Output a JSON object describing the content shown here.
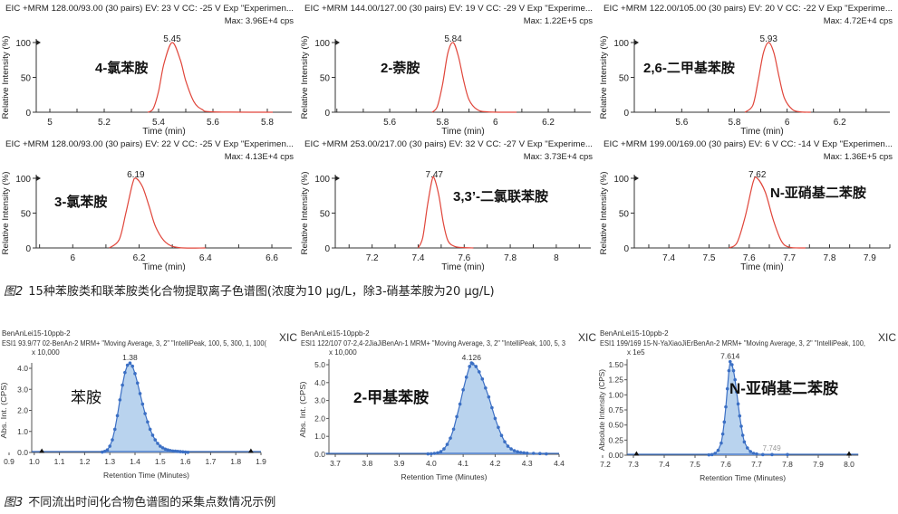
{
  "colors": {
    "eic_line": "#e0453a",
    "xic_line": "#3b6fc4",
    "xic_fill": "#b9d3ee",
    "axis": "#333333"
  },
  "figure2": {
    "caption_label": "图2",
    "caption_text": "15种苯胺类和联苯胺类化合物提取离子色谱图(浓度为10 μg/L，除3-硝基苯胺为20 μg/L)"
  },
  "figure3": {
    "caption_label": "图3",
    "caption_text": "不同流出时间化合物色谱图的采集点数情况示例"
  },
  "chart_data": [
    {
      "type": "line",
      "title": "EIC +MRM 128.00/93.00 (30 pairs) EV: 23 V CC: -25 V Exp \"Experimen...",
      "max": "Max: 3.96E+4 cps",
      "compound": "4-氯苯胺",
      "xlabel": "Time (min)",
      "ylabel": "Relative Intensity (%)",
      "xlim": [
        4.95,
        5.89
      ],
      "ylim": [
        0,
        100
      ],
      "xticks": [
        5,
        5.2,
        5.4,
        5.6,
        5.8
      ],
      "xtick_labels": [
        "5",
        "5.2",
        "5.4",
        "5.6",
        "5.8"
      ],
      "yticks": [
        0,
        50,
        100
      ],
      "ytick_labels": [
        "0",
        "50",
        "100"
      ],
      "peak_label": "5.45",
      "peak_rt": 5.45,
      "x": [
        5.36,
        5.38,
        5.4,
        5.42,
        5.45,
        5.48,
        5.5,
        5.53,
        5.56,
        5.6,
        5.82
      ],
      "y": [
        0,
        5,
        30,
        70,
        100,
        75,
        45,
        15,
        4,
        0.5,
        0
      ]
    },
    {
      "type": "line",
      "title": "EIC +MRM 144.00/127.00 (30 pairs) EV: 19 V CC: -29 V Exp \"Experime...",
      "max": "Max: 1.22E+5 cps",
      "compound": "2-萘胺",
      "xlabel": "Time (min)",
      "ylabel": "Relative Intensity (%)",
      "xlim": [
        5.394,
        6.361
      ],
      "ylim": [
        0,
        100
      ],
      "xticks": [
        5.6,
        5.8,
        6,
        6.2
      ],
      "xtick_labels": [
        "5.6",
        "5.8",
        "6",
        "6.2"
      ],
      "yticks": [
        0,
        50,
        100
      ],
      "ytick_labels": [
        "0",
        "50",
        "100"
      ],
      "peak_label": "5.84",
      "peak_rt": 5.84,
      "x": [
        5.76,
        5.78,
        5.8,
        5.82,
        5.84,
        5.86,
        5.88,
        5.9,
        5.93,
        5.97,
        6.08
      ],
      "y": [
        0,
        8,
        40,
        85,
        100,
        80,
        45,
        18,
        4,
        0.5,
        0
      ]
    },
    {
      "type": "line",
      "title": "EIC +MRM 122.00/105.00 (30 pairs) EV: 20 V CC: -22 V Exp \"Experime...",
      "max": "Max: 4.72E+4 cps",
      "compound": "2,6-二甲基苯胺",
      "xlabel": "Time (min)",
      "ylabel": "Relative Intensity (%)",
      "xlim": [
        5.42,
        6.39
      ],
      "ylim": [
        0,
        100
      ],
      "xticks": [
        5.6,
        5.8,
        6,
        6.2
      ],
      "xtick_labels": [
        "5.6",
        "5.8",
        "6",
        "6.2"
      ],
      "yticks": [
        0,
        50,
        100
      ],
      "ytick_labels": [
        "0",
        "50",
        "100"
      ],
      "peak_label": "5.93",
      "peak_rt": 5.93,
      "x": [
        5.84,
        5.87,
        5.89,
        5.91,
        5.93,
        5.95,
        5.97,
        5.99,
        6.02,
        6.05,
        6.09
      ],
      "y": [
        0,
        10,
        45,
        85,
        100,
        85,
        50,
        20,
        4,
        0.5,
        0
      ]
    },
    {
      "type": "line",
      "title": "EIC +MRM 128.00/93.00 (30 pairs) EV: 22 V CC: -25 V Exp \"Experimen...",
      "max": "Max: 4.13E+4 cps",
      "compound": "3-氯苯胺",
      "xlabel": "Time (min)",
      "ylabel": "Relative Intensity (%)",
      "xlim": [
        5.89,
        6.66
      ],
      "ylim": [
        0,
        100
      ],
      "xticks": [
        6,
        6.2,
        6.4,
        6.6
      ],
      "xtick_labels": [
        "6",
        "6.2",
        "6.4",
        "6.6"
      ],
      "yticks": [
        0,
        50,
        100
      ],
      "ytick_labels": [
        "0",
        "50",
        "100"
      ],
      "peak_label": "6.19",
      "peak_rt": 6.19,
      "x": [
        6.11,
        6.14,
        6.16,
        6.18,
        6.19,
        6.21,
        6.23,
        6.25,
        6.28,
        6.32,
        6.4
      ],
      "y": [
        0,
        12,
        50,
        92,
        100,
        88,
        60,
        30,
        8,
        0.5,
        0
      ]
    },
    {
      "type": "line",
      "title": "EIC +MRM 253.00/217.00 (30 pairs) EV: 32 V CC: -27 V Exp \"Experime...",
      "max": "Max: 3.73E+4 cps",
      "compound": "3,3’-二氯联苯胺",
      "xlabel": "Time (min)",
      "ylabel": "Relative Intensity (%)",
      "xlim": [
        7.04,
        8.15
      ],
      "ylim": [
        0,
        100
      ],
      "xticks": [
        7.2,
        7.4,
        7.6,
        7.8,
        8
      ],
      "xtick_labels": [
        "7.2",
        "7.4",
        "7.6",
        "7.8",
        "8"
      ],
      "yticks": [
        0,
        50,
        100
      ],
      "ytick_labels": [
        "0",
        "50",
        "100"
      ],
      "peak_label": "7.47",
      "peak_rt": 7.47,
      "x": [
        7.4,
        7.42,
        7.44,
        7.46,
        7.47,
        7.49,
        7.51,
        7.53,
        7.56,
        7.6,
        7.64
      ],
      "y": [
        0,
        15,
        60,
        97,
        100,
        75,
        35,
        10,
        2,
        0.5,
        0
      ]
    },
    {
      "type": "line",
      "title": "EIC +MRM 199.00/169.00 (30 pairs) EV: 6 V CC: -14 V Exp \"Experimen...",
      "max": "Max: 1.36E+5 cps",
      "compound": "N-亚硝基二苯胺",
      "xlabel": "Time (min)",
      "ylabel": "Relative Intensity (%)",
      "xlim": [
        7.314,
        7.95
      ],
      "ylim": [
        0,
        100
      ],
      "xticks": [
        7.4,
        7.5,
        7.6,
        7.7,
        7.8,
        7.9
      ],
      "xtick_labels": [
        "7.4",
        "7.5",
        "7.6",
        "7.7",
        "7.8",
        "7.9"
      ],
      "yticks": [
        0,
        50,
        100
      ],
      "ytick_labels": [
        "0",
        "50",
        "100"
      ],
      "peak_label": "7.62",
      "peak_rt": 7.62,
      "x": [
        7.55,
        7.57,
        7.59,
        7.61,
        7.62,
        7.64,
        7.66,
        7.68,
        7.7,
        7.74
      ],
      "y": [
        0,
        8,
        45,
        95,
        100,
        80,
        40,
        10,
        1,
        0
      ]
    },
    {
      "type": "scatter",
      "sample": "BenAnLei15-10ppb-2",
      "title": "ESI1 93.9/77 02-BenAn-2 MRM+ \"Moving Average, 3, 2\" \"IntelliPeak, 100, 5, 300, 1, 100(",
      "tag": "XIC",
      "multiplier": "x 10,000",
      "compound": "苯胺",
      "xlabel": "Retention Time (Minutes)",
      "ylabel": "Abs. Int. (CPS)",
      "xlim": [
        0.9,
        1.9
      ],
      "ylim": [
        0,
        4.3
      ],
      "xticks": [
        0.9,
        1.0,
        1.1,
        1.2,
        1.3,
        1.4,
        1.5,
        1.6,
        1.7,
        1.8,
        1.9
      ],
      "xtick_labels": [
        "0.9",
        "1.0",
        "1.1",
        "1.2",
        "1.3",
        "1.4",
        "1.5",
        "1.6",
        "1.7",
        "1.8",
        "1.9"
      ],
      "yticks": [
        0,
        1,
        2,
        3,
        4
      ],
      "ytick_labels": [
        "0.0",
        "1.0",
        "2.0",
        "3.0",
        "4.0"
      ],
      "peak_label": "1.38",
      "peak_rt": 1.38,
      "peak_value": 4.25,
      "markers": [
        1.03,
        1.86
      ],
      "baseline_range": [
        0.99,
        1.9
      ],
      "x": [
        1.27,
        1.28,
        1.29,
        1.3,
        1.31,
        1.32,
        1.33,
        1.34,
        1.35,
        1.36,
        1.37,
        1.38,
        1.39,
        1.4,
        1.41,
        1.42,
        1.43,
        1.44,
        1.45,
        1.46,
        1.47,
        1.48,
        1.49,
        1.5,
        1.51,
        1.52,
        1.53,
        1.54,
        1.55,
        1.56,
        1.57,
        1.58,
        1.59,
        1.6,
        1.61
      ],
      "y": [
        0.02,
        0.05,
        0.12,
        0.3,
        0.6,
        1.1,
        1.75,
        2.5,
        3.2,
        3.8,
        4.15,
        4.25,
        4.1,
        3.75,
        3.3,
        2.8,
        2.3,
        1.85,
        1.45,
        1.1,
        0.82,
        0.6,
        0.43,
        0.3,
        0.22,
        0.16,
        0.12,
        0.09,
        0.07,
        0.06,
        0.05,
        0.04,
        0.03,
        0.02,
        0.01
      ]
    },
    {
      "type": "scatter",
      "sample": "BenAnLei15-10ppb-2",
      "title": "ESI1 122/107 07-2,4-2JiaJiBenAn-1 MRM+ \"Moving Average, 3, 2\" \"IntelliPeak, 100, 5, 3",
      "tag": "XIC",
      "multiplier": "x 10,000",
      "compound": "2-甲基苯胺",
      "xlabel": "Retention Time (Minutes)",
      "ylabel": "Abs. Int. (CPS)",
      "xlim": [
        3.67,
        4.4
      ],
      "ylim": [
        0,
        5.1
      ],
      "xticks": [
        3.7,
        3.8,
        3.9,
        4.0,
        4.1,
        4.2,
        4.3,
        4.4
      ],
      "xtick_labels": [
        "3.7",
        "3.8",
        "3.9",
        "4.0",
        "4.1",
        "4.2",
        "4.3",
        "4.4"
      ],
      "yticks": [
        0,
        1,
        2,
        3,
        4,
        5
      ],
      "ytick_labels": [
        "0.0",
        "1.0",
        "2.0",
        "3.0",
        "4.0",
        "5.0"
      ],
      "peak_label": "4.126",
      "peak_rt": 4.126,
      "peak_value": 5.1,
      "markers": [],
      "baseline_range": [
        3.67,
        4.4
      ],
      "x": [
        3.99,
        4.0,
        4.01,
        4.02,
        4.03,
        4.04,
        4.05,
        4.06,
        4.07,
        4.08,
        4.09,
        4.1,
        4.11,
        4.12,
        4.126,
        4.13,
        4.14,
        4.15,
        4.16,
        4.17,
        4.18,
        4.19,
        4.2,
        4.21,
        4.22,
        4.23,
        4.24,
        4.25,
        4.26,
        4.27,
        4.28,
        4.29,
        4.3,
        4.32,
        4.34,
        4.36
      ],
      "y": [
        0.02,
        0.03,
        0.05,
        0.08,
        0.15,
        0.3,
        0.55,
        0.9,
        1.4,
        2.1,
        2.8,
        3.6,
        4.3,
        4.9,
        5.1,
        5.05,
        4.9,
        4.6,
        4.2,
        3.7,
        3.2,
        2.6,
        2.0,
        1.5,
        1.05,
        0.7,
        0.45,
        0.3,
        0.2,
        0.14,
        0.1,
        0.08,
        0.06,
        0.05,
        0.04,
        0.02
      ]
    },
    {
      "type": "scatter",
      "sample": "BenAnLei15-10ppb-2",
      "title": "ESI1 199/169 15-N-YaXiaoJiErBenAn-2 MRM+ \"Moving Average, 3, 2\" \"IntelliPeak, 100,",
      "tag": "XIC",
      "multiplier": "x 1e5",
      "compound": "N-亚硝基二苯胺",
      "xlabel": "Retention Time (Minutes)",
      "ylabel": "Absolute Intensity (CPS)",
      "xlim": [
        7.2,
        8.0
      ],
      "ylim": [
        0,
        1.55
      ],
      "xticks": [
        7.2,
        7.3,
        7.4,
        7.5,
        7.6,
        7.7,
        7.8,
        7.9,
        8.0
      ],
      "xtick_labels": [
        "7.2",
        "7.3",
        "7.4",
        "7.5",
        "7.6",
        "7.7",
        "7.8",
        "7.9",
        "8.0"
      ],
      "yticks": [
        0,
        0.25,
        0.5,
        0.75,
        1.0,
        1.25,
        1.5
      ],
      "ytick_labels": [
        "0.00",
        "0.25",
        "0.50",
        "0.75",
        "1.00",
        "1.25",
        "1.50"
      ],
      "peak_label": "7.614",
      "peak_rt": 7.614,
      "peak_value": 1.55,
      "secondary_label": "7.749",
      "secondary_rt": 7.749,
      "markers": [
        7.31,
        8.0
      ],
      "baseline_range": [
        7.28,
        8.03
      ],
      "x": [
        7.545,
        7.555,
        7.565,
        7.575,
        7.585,
        7.59,
        7.595,
        7.6,
        7.605,
        7.61,
        7.614,
        7.62,
        7.625,
        7.63,
        7.635,
        7.64,
        7.645,
        7.65,
        7.655,
        7.66,
        7.67,
        7.68,
        7.69,
        7.7,
        7.72,
        7.75,
        7.8
      ],
      "y": [
        0.005,
        0.01,
        0.03,
        0.08,
        0.2,
        0.35,
        0.55,
        0.8,
        1.1,
        1.4,
        1.55,
        1.5,
        1.4,
        1.25,
        1.05,
        0.85,
        0.65,
        0.48,
        0.33,
        0.22,
        0.12,
        0.06,
        0.03,
        0.02,
        0.01,
        0.01,
        0.01
      ]
    }
  ]
}
